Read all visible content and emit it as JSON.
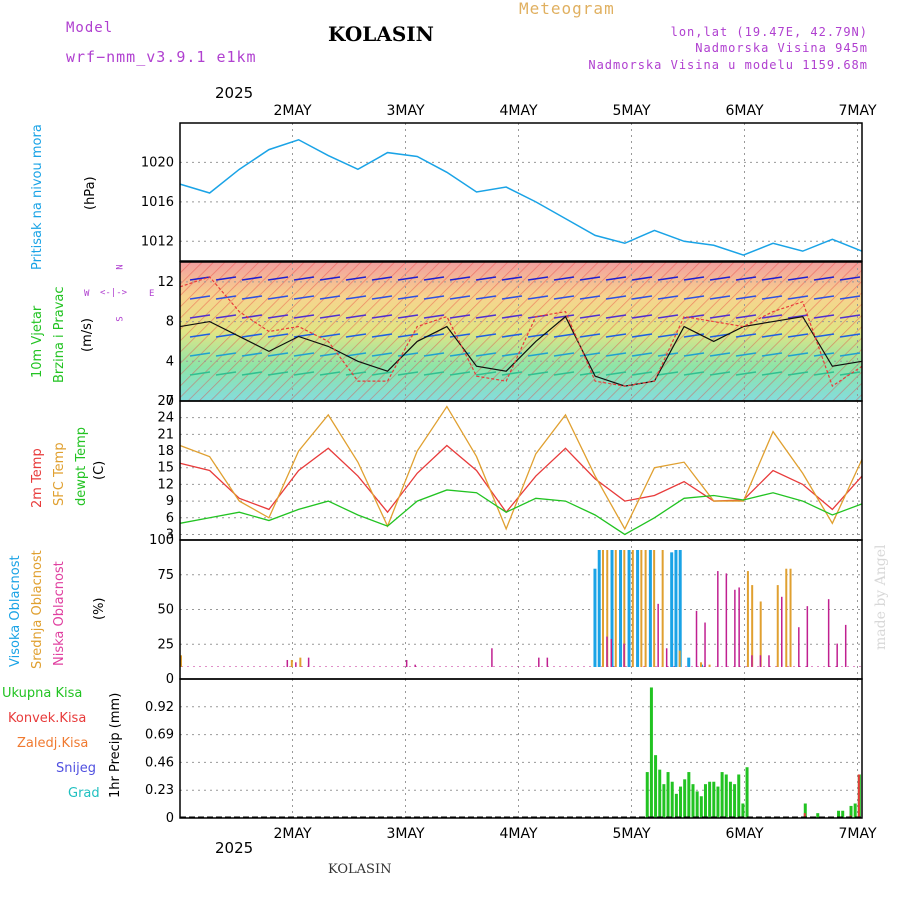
{
  "header": {
    "model_label": "Model",
    "model_name": "wrf−nmm_v3.9.1 e1km",
    "station": "KOLASIN",
    "meteogram": "Meteogram",
    "lonlat": "lon,lat (19.47E, 42.79N)",
    "elevation": "Nadmorska Visina 945m",
    "model_elevation": "Nadmorska Visina u modelu 1159.68m",
    "year_top": "2025",
    "year_bottom": "2025",
    "footer": "KOLASIN",
    "watermark": "made by Angel"
  },
  "colors": {
    "pressure": "#1aa3e6",
    "temp2m": "#e83b3b",
    "sfc": "#e0a030",
    "dew": "#22c322",
    "purple": "#b040d0",
    "grid": "#888888"
  },
  "panel_labels": {
    "pressure": {
      "title": "Pritisak na nivou mora",
      "unit": "(hPa)"
    },
    "wind": {
      "line1": "10m Vjetar",
      "line2": "Brzina i Pravac",
      "unit": "(m/s)",
      "compass_n": "N",
      "compass_s": "S",
      "compass_w": "W",
      "compass_e": "E"
    },
    "temp": {
      "line1": "2m Temp",
      "line2": "SFC Temp",
      "line3": "dewpt Temp",
      "unit": "(C)"
    },
    "cloud": {
      "line1": "Visoka Oblacnost",
      "line2": "Srednja Oblacnost",
      "line3": "Niska Oblacnost",
      "unit": "(%)"
    },
    "precip": {
      "unit": "1hr Precip (mm)",
      "legend": [
        "Ukupna Kisa",
        "Konvek.Kisa",
        "Zaledj.Kisa",
        "Snijeg",
        "Grad"
      ]
    }
  },
  "chart_data": [
    {
      "type": "line",
      "title": "Pritisak na nivou mora",
      "ylabel": "(hPa)",
      "ylim": [
        1010,
        1024
      ],
      "yticks": [
        "1012",
        "1016",
        "1020"
      ],
      "xticks": [
        "2MAY",
        "3MAY",
        "4MAY",
        "5MAY",
        "6MAY",
        "7MAY"
      ],
      "x_hours": [
        0,
        6,
        12,
        18,
        24,
        30,
        36,
        42,
        48,
        54,
        60,
        66,
        72,
        78,
        84,
        90,
        96,
        102,
        108,
        114,
        120,
        126,
        132,
        138
      ],
      "series": [
        {
          "name": "Pritisak na nivou mora",
          "values": [
            1017.8,
            1016.9,
            1019.3,
            1021.3,
            1022.3,
            1020.7,
            1019.3,
            1021.0,
            1020.6,
            1019.0,
            1017.0,
            1017.5,
            1016.0,
            1014.3,
            1012.6,
            1011.8,
            1013.1,
            1012.0,
            1011.6,
            1010.6,
            1011.8,
            1011.0,
            1012.2,
            1011.0
          ]
        }
      ]
    },
    {
      "type": "line",
      "title": "10m Vjetar Brzina i Pravac",
      "ylabel": "(m/s)",
      "ylim": [
        0,
        14
      ],
      "yticks": [
        "0",
        "4",
        "8",
        "12"
      ],
      "x_hours": [
        0,
        6,
        12,
        18,
        24,
        30,
        36,
        42,
        48,
        54,
        60,
        66,
        72,
        78,
        84,
        90,
        96,
        102,
        108,
        114,
        120,
        126,
        132,
        138
      ],
      "series": [
        {
          "name": "brzina",
          "values": [
            7.5,
            8.0,
            6.5,
            5.0,
            6.5,
            5.5,
            4.0,
            3.0,
            6.0,
            7.5,
            3.5,
            3.0,
            6.0,
            8.5,
            2.5,
            1.5,
            2.0,
            7.5,
            6.0,
            7.5,
            8.0,
            8.5,
            3.5,
            4.0
          ]
        },
        {
          "name": "udari",
          "values": [
            11.5,
            12.5,
            9.0,
            7.0,
            7.5,
            6.0,
            2.0,
            2.0,
            7.5,
            8.5,
            2.5,
            2.0,
            8.5,
            9.0,
            2.0,
            1.5,
            2.0,
            8.5,
            8.0,
            7.5,
            9.0,
            10.0,
            1.5,
            3.5
          ]
        }
      ]
    },
    {
      "type": "line",
      "title": "2m Temp / SFC Temp / dewpt Temp",
      "ylabel": "(C)",
      "ylim": [
        2,
        27
      ],
      "yticks": [
        "3",
        "6",
        "9",
        "12",
        "15",
        "18",
        "21",
        "24",
        "27"
      ],
      "x_hours": [
        0,
        6,
        12,
        18,
        24,
        30,
        36,
        42,
        48,
        54,
        60,
        66,
        72,
        78,
        84,
        90,
        96,
        102,
        108,
        114,
        120,
        126,
        132,
        138
      ],
      "series": [
        {
          "name": "2m Temp",
          "values": [
            15.8,
            14.5,
            9.5,
            7.5,
            14.5,
            18.5,
            13.5,
            7.0,
            14.0,
            19.0,
            14.5,
            7.0,
            13.5,
            18.5,
            13.0,
            9.0,
            10.0,
            12.5,
            9.0,
            9.2,
            14.5,
            12.0,
            7.5,
            13.5
          ]
        },
        {
          "name": "SFC Temp",
          "values": [
            19.0,
            17.0,
            9.0,
            6.0,
            18.0,
            24.5,
            16.0,
            4.5,
            18.0,
            26.0,
            17.0,
            4.0,
            17.5,
            24.5,
            13.5,
            4.0,
            15.0,
            16.0,
            9.0,
            9.0,
            21.5,
            14.0,
            5.0,
            16.5
          ]
        },
        {
          "name": "dewpt Temp",
          "values": [
            5.0,
            6.0,
            7.0,
            5.5,
            7.5,
            9.0,
            6.5,
            4.5,
            9.0,
            11.0,
            10.5,
            7.0,
            9.5,
            9.0,
            6.5,
            3.0,
            6.0,
            9.5,
            10.0,
            9.2,
            10.5,
            9.0,
            6.5,
            8.5
          ]
        }
      ]
    },
    {
      "type": "bar",
      "title": "Visoka / Srednja / Niska Oblacnost",
      "ylabel": "(%)",
      "ylim": [
        0,
        100
      ],
      "yticks": [
        "0",
        "25",
        "50",
        "75",
        "100"
      ],
      "series": [
        {
          "name": "Visoka Oblacnost",
          "points": [
            [
              97,
              84
            ],
            [
              98,
              100
            ],
            [
              101,
              100
            ],
            [
              103,
              100
            ],
            [
              105,
              100
            ],
            [
              107,
              100
            ],
            [
              110,
              100
            ],
            [
              115,
              98
            ],
            [
              116,
              100
            ],
            [
              117,
              100
            ],
            [
              119,
              8
            ],
            [
              122,
              2
            ]
          ]
        },
        {
          "name": "Srednja Oblacnost",
          "points": [
            [
              0,
              10
            ],
            [
              26,
              6
            ],
            [
              28,
              8
            ],
            [
              99,
              100
            ],
            [
              100,
              100
            ],
            [
              102,
              100
            ],
            [
              104,
              100
            ],
            [
              106,
              100
            ],
            [
              108,
              100
            ],
            [
              109,
              100
            ],
            [
              111,
              100
            ],
            [
              113,
              100
            ],
            [
              117,
              14
            ],
            [
              133,
              82
            ],
            [
              134,
              70
            ],
            [
              136,
              56
            ],
            [
              140,
              70
            ],
            [
              142,
              84
            ],
            [
              143,
              84
            ],
            [
              122,
              4
            ],
            [
              124,
              2
            ]
          ]
        },
        {
          "name": "Niska Oblacnost",
          "points": [
            [
              25,
              6
            ],
            [
              27,
              4
            ],
            [
              30,
              8
            ],
            [
              53,
              6
            ],
            [
              55,
              2
            ],
            [
              73,
              16
            ],
            [
              84,
              8
            ],
            [
              86,
              8
            ],
            [
              100,
              26
            ],
            [
              101,
              24
            ],
            [
              104,
              20
            ],
            [
              112,
              54
            ],
            [
              114,
              16
            ],
            [
              121,
              48
            ],
            [
              123,
              38
            ],
            [
              126,
              82
            ],
            [
              128,
              80
            ],
            [
              130,
              66
            ],
            [
              131,
              68
            ],
            [
              134,
              10
            ],
            [
              136,
              10
            ],
            [
              138,
              10
            ],
            [
              141,
              60
            ],
            [
              145,
              34
            ],
            [
              147,
              52
            ],
            [
              152,
              58
            ],
            [
              154,
              20
            ],
            [
              156,
              36
            ]
          ]
        }
      ]
    },
    {
      "type": "bar",
      "title": "1hr Precip",
      "ylabel": "1hr Precip (mm)",
      "ylim": [
        0,
        1.15
      ],
      "yticks": [
        "0",
        "0.23",
        "0.46",
        "0.69",
        "0.92"
      ],
      "series": [
        {
          "name": "Ukupna Kisa",
          "points": [
            [
              112,
              0.38
            ],
            [
              113,
              1.08
            ],
            [
              114,
              0.52
            ],
            [
              115,
              0.4
            ],
            [
              116,
              0.28
            ],
            [
              117,
              0.38
            ],
            [
              118,
              0.3
            ],
            [
              119,
              0.2
            ],
            [
              120,
              0.26
            ],
            [
              121,
              0.32
            ],
            [
              122,
              0.38
            ],
            [
              123,
              0.28
            ],
            [
              124,
              0.22
            ],
            [
              125,
              0.18
            ],
            [
              126,
              0.28
            ],
            [
              127,
              0.3
            ],
            [
              128,
              0.3
            ],
            [
              129,
              0.26
            ],
            [
              130,
              0.38
            ],
            [
              131,
              0.36
            ],
            [
              132,
              0.3
            ],
            [
              133,
              0.28
            ],
            [
              134,
              0.36
            ],
            [
              135,
              0.12
            ],
            [
              136,
              0.42
            ],
            [
              150,
              0.12
            ],
            [
              153,
              0.04
            ],
            [
              158,
              0.06
            ],
            [
              159,
              0.06
            ],
            [
              161,
              0.1
            ],
            [
              162,
              0.12
            ],
            [
              163,
              0.36
            ]
          ]
        },
        {
          "name": "Konvek.Kisa",
          "points": [
            [
              150,
              0.04
            ],
            [
              161,
              0.02
            ],
            [
              163,
              0.36
            ]
          ]
        }
      ]
    }
  ]
}
